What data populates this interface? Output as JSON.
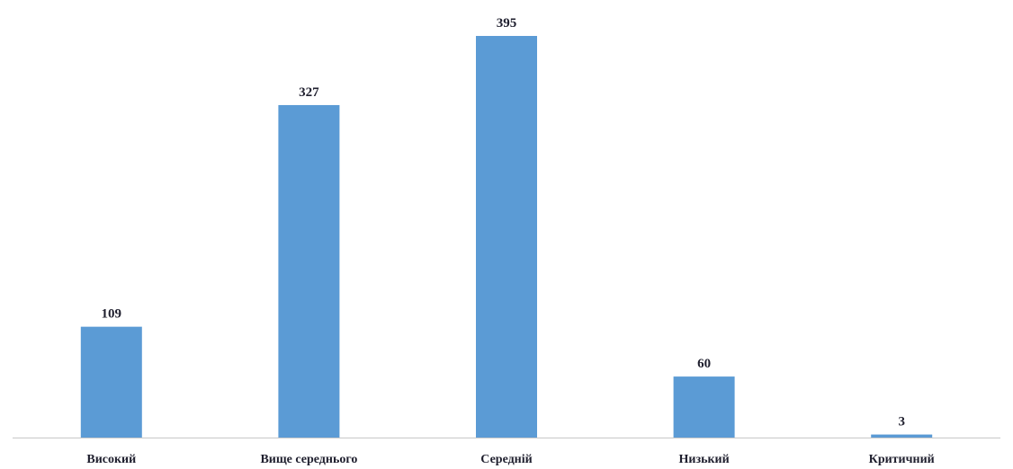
{
  "chart_data": {
    "type": "bar",
    "categories": [
      "Високий",
      "Вище середнього",
      "Середній",
      "Низький",
      "Критичний"
    ],
    "values": [
      109,
      327,
      395,
      60,
      3
    ],
    "title": "",
    "xlabel": "",
    "ylabel": "",
    "ylim": [
      0,
      395
    ],
    "grid": false,
    "legend": "none",
    "bar_color": "#5b9bd5",
    "axis_color": "#c8c8c8",
    "data_labels": true
  }
}
